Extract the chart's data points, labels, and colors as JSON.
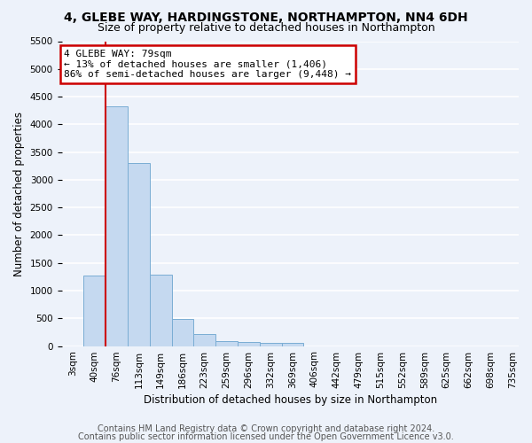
{
  "title1": "4, GLEBE WAY, HARDINGSTONE, NORTHAMPTON, NN4 6DH",
  "title2": "Size of property relative to detached houses in Northampton",
  "xlabel": "Distribution of detached houses by size in Northampton",
  "ylabel": "Number of detached properties",
  "bar_labels": [
    "3sqm",
    "40sqm",
    "76sqm",
    "113sqm",
    "149sqm",
    "186sqm",
    "223sqm",
    "259sqm",
    "296sqm",
    "332sqm",
    "369sqm",
    "406sqm",
    "442sqm",
    "479sqm",
    "515sqm",
    "552sqm",
    "589sqm",
    "625sqm",
    "662sqm",
    "698sqm",
    "735sqm"
  ],
  "bar_values": [
    0,
    1270,
    4330,
    3300,
    1280,
    490,
    210,
    90,
    80,
    60,
    50,
    0,
    0,
    0,
    0,
    0,
    0,
    0,
    0,
    0,
    0
  ],
  "bar_color": "#c5d9f0",
  "bar_edge_color": "#7aadd4",
  "property_line_x_index": 2,
  "x_min": 3,
  "x_max": 772,
  "bin_width": 37,
  "ylim": [
    0,
    5500
  ],
  "yticks": [
    0,
    500,
    1000,
    1500,
    2000,
    2500,
    3000,
    3500,
    4000,
    4500,
    5000,
    5500
  ],
  "annotation_text": "4 GLEBE WAY: 79sqm\n← 13% of detached houses are smaller (1,406)\n86% of semi-detached houses are larger (9,448) →",
  "annotation_box_color": "#ffffff",
  "annotation_border_color": "#cc0000",
  "red_line_color": "#cc0000",
  "footer1": "Contains HM Land Registry data © Crown copyright and database right 2024.",
  "footer2": "Contains public sector information licensed under the Open Government Licence v3.0.",
  "background_color": "#edf2fa",
  "plot_background": "#edf2fa",
  "grid_color": "#ffffff",
  "title1_fontsize": 10,
  "title2_fontsize": 9,
  "axis_label_fontsize": 8.5,
  "tick_fontsize": 7.5,
  "footer_fontsize": 7
}
